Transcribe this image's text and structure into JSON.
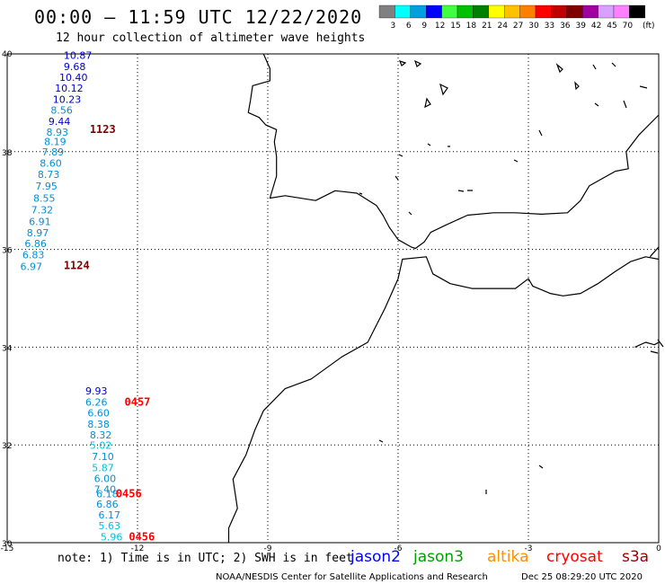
{
  "header": {
    "title": "00:00 – 11:59 UTC 12/22/2020",
    "subtitle": "12 hour collection of altimeter wave heights"
  },
  "color_scale": {
    "unit": "(ft)",
    "bins": [
      {
        "label": "3",
        "color": "#808080"
      },
      {
        "label": "6",
        "color": "#00ffff"
      },
      {
        "label": "9",
        "color": "#00a0e0"
      },
      {
        "label": "12",
        "color": "#0000ff"
      },
      {
        "label": "15",
        "color": "#40ff40"
      },
      {
        "label": "18",
        "color": "#00c000"
      },
      {
        "label": "21",
        "color": "#008000"
      },
      {
        "label": "24",
        "color": "#ffff00"
      },
      {
        "label": "27",
        "color": "#ffc000"
      },
      {
        "label": "30",
        "color": "#ff8000"
      },
      {
        "label": "33",
        "color": "#ff0000"
      },
      {
        "label": "36",
        "color": "#c00000"
      },
      {
        "label": "39",
        "color": "#800000"
      },
      {
        "label": "42",
        "color": "#a000a0"
      },
      {
        "label": "45",
        "color": "#d8a0ff"
      },
      {
        "label": "70",
        "color": "#ff80ff"
      },
      {
        "label": "",
        "color": "#000000"
      }
    ]
  },
  "map": {
    "lon_range": [
      -15,
      0
    ],
    "lat_range": [
      30,
      40
    ],
    "lon_ticks": [
      "-15",
      "-12",
      "-9",
      "-6",
      "-3",
      "0"
    ],
    "lat_ticks": [
      "40",
      "38",
      "36",
      "34",
      "32",
      "30"
    ],
    "grid": "dotted"
  },
  "observations": [
    {
      "swh": "10.87",
      "lon": -13.7,
      "lat": 39.9,
      "color": "#0000c8"
    },
    {
      "swh": "9.68",
      "lon": -13.7,
      "lat": 39.67,
      "color": "#0000c8"
    },
    {
      "swh": "10.40",
      "lon": -13.8,
      "lat": 39.45,
      "color": "#0000c8"
    },
    {
      "swh": "10.12",
      "lon": -13.9,
      "lat": 39.23,
      "color": "#0000c8"
    },
    {
      "swh": "10.23",
      "lon": -13.95,
      "lat": 39.0,
      "color": "#0000c8"
    },
    {
      "swh": "8.56",
      "lon": -14.0,
      "lat": 38.78,
      "color": "#0090d8"
    },
    {
      "swh": "9.44",
      "lon": -14.05,
      "lat": 38.55,
      "color": "#0000c8"
    },
    {
      "swh": "8.93",
      "lon": -14.1,
      "lat": 38.33,
      "color": "#0090d8"
    },
    {
      "swh": "8.19",
      "lon": -14.15,
      "lat": 38.13,
      "color": "#0090d8"
    },
    {
      "swh": "7.89",
      "lon": -14.2,
      "lat": 37.92,
      "color": "#0090d8"
    },
    {
      "swh": "8.60",
      "lon": -14.25,
      "lat": 37.69,
      "color": "#0090d8"
    },
    {
      "swh": "8.73",
      "lon": -14.3,
      "lat": 37.46,
      "color": "#0090d8"
    },
    {
      "swh": "7.95",
      "lon": -14.35,
      "lat": 37.22,
      "color": "#0090d8"
    },
    {
      "swh": "8.55",
      "lon": -14.4,
      "lat": 36.98,
      "color": "#0090d8"
    },
    {
      "swh": "7.32",
      "lon": -14.45,
      "lat": 36.74,
      "color": "#0090d8"
    },
    {
      "swh": "6.91",
      "lon": -14.5,
      "lat": 36.5,
      "color": "#0090d8"
    },
    {
      "swh": "8.97",
      "lon": -14.55,
      "lat": 36.27,
      "color": "#0090d8"
    },
    {
      "swh": "6.86",
      "lon": -14.6,
      "lat": 36.05,
      "color": "#0090d8"
    },
    {
      "swh": "6.83",
      "lon": -14.65,
      "lat": 35.82,
      "color": "#0090d8"
    },
    {
      "swh": "6.97",
      "lon": -14.7,
      "lat": 35.58,
      "color": "#0090d8"
    },
    {
      "swh": "9.93",
      "lon": -13.2,
      "lat": 33.03,
      "color": "#0000c8"
    },
    {
      "swh": "6.26",
      "lon": -13.2,
      "lat": 32.8,
      "color": "#0090d8"
    },
    {
      "swh": "6.60",
      "lon": -13.15,
      "lat": 32.58,
      "color": "#0090d8"
    },
    {
      "swh": "8.38",
      "lon": -13.15,
      "lat": 32.35,
      "color": "#0090d8"
    },
    {
      "swh": "8.32",
      "lon": -13.1,
      "lat": 32.13,
      "color": "#0090d8"
    },
    {
      "swh": "5.02",
      "lon": -13.1,
      "lat": 31.92,
      "color": "#00c0e0"
    },
    {
      "swh": "7.10",
      "lon": -13.05,
      "lat": 31.69,
      "color": "#0090d8"
    },
    {
      "swh": "5.87",
      "lon": -13.05,
      "lat": 31.46,
      "color": "#00c0e0"
    },
    {
      "swh": "6.00",
      "lon": -13.0,
      "lat": 31.24,
      "color": "#0090d8"
    },
    {
      "swh": "7.40",
      "lon": -13.0,
      "lat": 31.02,
      "color": "#0090d8"
    },
    {
      "swh": "6.18",
      "lon": -12.95,
      "lat": 30.93,
      "color": "#0090d8"
    },
    {
      "swh": "6.86",
      "lon": -12.95,
      "lat": 30.72,
      "color": "#0090d8"
    },
    {
      "swh": "6.17",
      "lon": -12.9,
      "lat": 30.5,
      "color": "#0090d8"
    },
    {
      "swh": "5.63",
      "lon": -12.9,
      "lat": 30.28,
      "color": "#00c0e0"
    },
    {
      "swh": "5.96",
      "lon": -12.85,
      "lat": 30.05,
      "color": "#00c0e0"
    }
  ],
  "pass_times": [
    {
      "label": "1123",
      "lon": -13.1,
      "lat": 38.38,
      "color": "#800000"
    },
    {
      "label": "1124",
      "lon": -13.7,
      "lat": 35.6,
      "color": "#800000"
    },
    {
      "label": "0457",
      "lon": -12.3,
      "lat": 32.8,
      "color": "#ff0000"
    },
    {
      "label": "0456",
      "lon": -12.5,
      "lat": 30.93,
      "color": "#ff0000"
    },
    {
      "label": "0456",
      "lon": -12.2,
      "lat": 30.05,
      "color": "#ff0000"
    }
  ],
  "note": "note: 1) Time is in UTC; 2) SWH is in feet",
  "missions": [
    {
      "name": "jason2",
      "color": "#0000ff"
    },
    {
      "name": "jason3",
      "color": "#00a000"
    },
    {
      "name": "altika",
      "color": "#ff9000"
    },
    {
      "name": "cryosat",
      "color": "#ff0000"
    },
    {
      "name": "s3a",
      "color": "#a00000"
    }
  ],
  "footer": {
    "credit": "NOAA/NESDIS Center for Satellite Applications and Research",
    "timestamp": "Dec 25 08:29:20 UTC 2020"
  },
  "coastlines": {
    "iberia_west": [
      [
        -9.1,
        40.0
      ],
      [
        -8.95,
        39.7
      ],
      [
        -8.95,
        39.45
      ],
      [
        -9.35,
        39.35
      ],
      [
        -9.4,
        39.05
      ],
      [
        -9.45,
        38.8
      ],
      [
        -9.2,
        38.7
      ],
      [
        -9.05,
        38.55
      ],
      [
        -8.8,
        38.45
      ],
      [
        -8.85,
        38.2
      ],
      [
        -8.8,
        37.9
      ],
      [
        -8.8,
        37.5
      ],
      [
        -8.95,
        37.05
      ],
      [
        -8.6,
        37.1
      ],
      [
        -7.9,
        37.0
      ],
      [
        -7.45,
        37.2
      ],
      [
        -6.95,
        37.15
      ],
      [
        -6.5,
        36.9
      ],
      [
        -6.35,
        36.7
      ],
      [
        -6.2,
        36.45
      ],
      [
        -6.0,
        36.2
      ],
      [
        -5.7,
        36.05
      ],
      [
        -5.6,
        36.02
      ],
      [
        -5.4,
        36.15
      ],
      [
        -5.25,
        36.35
      ],
      [
        -4.9,
        36.5
      ],
      [
        -4.4,
        36.7
      ],
      [
        -3.8,
        36.75
      ],
      [
        -3.3,
        36.75
      ],
      [
        -2.7,
        36.72
      ],
      [
        -2.1,
        36.75
      ],
      [
        -1.8,
        37.0
      ],
      [
        -1.6,
        37.3
      ],
      [
        -1.0,
        37.6
      ],
      [
        -0.7,
        37.65
      ],
      [
        -0.75,
        38.0
      ],
      [
        -0.45,
        38.35
      ],
      [
        0.0,
        38.75
      ]
    ],
    "africa_north": [
      [
        0.0,
        35.8
      ],
      [
        -0.3,
        35.85
      ],
      [
        -0.65,
        35.75
      ],
      [
        -1.0,
        35.55
      ],
      [
        -1.4,
        35.3
      ],
      [
        -1.8,
        35.1
      ],
      [
        -2.2,
        35.05
      ],
      [
        -2.5,
        35.1
      ],
      [
        -2.9,
        35.25
      ],
      [
        -3.0,
        35.4
      ],
      [
        -3.3,
        35.2
      ],
      [
        -3.8,
        35.2
      ],
      [
        -4.3,
        35.2
      ],
      [
        -4.8,
        35.3
      ],
      [
        -5.2,
        35.5
      ],
      [
        -5.35,
        35.85
      ],
      [
        -5.9,
        35.8
      ],
      [
        -6.0,
        35.4
      ],
      [
        -6.3,
        34.8
      ],
      [
        -6.7,
        34.1
      ],
      [
        -7.3,
        33.8
      ],
      [
        -8.0,
        33.35
      ],
      [
        -8.6,
        33.15
      ],
      [
        -9.1,
        32.7
      ],
      [
        -9.3,
        32.3
      ],
      [
        -9.5,
        31.8
      ],
      [
        -9.8,
        31.3
      ],
      [
        -9.7,
        30.7
      ],
      [
        -9.9,
        30.3
      ],
      [
        -9.9,
        30.0
      ]
    ],
    "africa_east": [
      [
        0.0,
        36.05
      ],
      [
        -0.1,
        35.95
      ],
      [
        -0.2,
        35.85
      ]
    ],
    "east_strip": [
      [
        -0.55,
        34.0
      ],
      [
        -0.3,
        34.1
      ],
      [
        -0.1,
        34.05
      ],
      [
        0.0,
        34.1
      ]
    ]
  }
}
